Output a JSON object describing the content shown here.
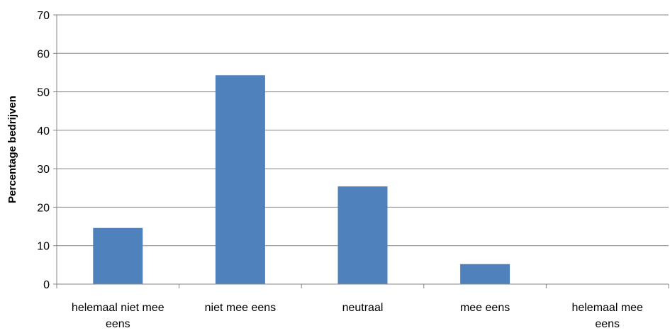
{
  "chart_data": {
    "type": "bar",
    "title": "",
    "xlabel": "",
    "ylabel": "Percentage bedrijven",
    "categories": [
      [
        "helemaal niet mee",
        "eens"
      ],
      [
        "niet mee eens"
      ],
      [
        "neutraal"
      ],
      [
        "mee eens"
      ],
      [
        "helemaal mee",
        "eens"
      ]
    ],
    "values": [
      14.6,
      54.3,
      25.4,
      5.2,
      0
    ],
    "ylim": [
      0,
      70
    ],
    "yticks": [
      0,
      10,
      20,
      30,
      40,
      50,
      60,
      70
    ],
    "grid": true,
    "legend": "none",
    "colors": {
      "bar": "#4f81bd",
      "grid": "#868686",
      "axis": "#868686"
    }
  }
}
